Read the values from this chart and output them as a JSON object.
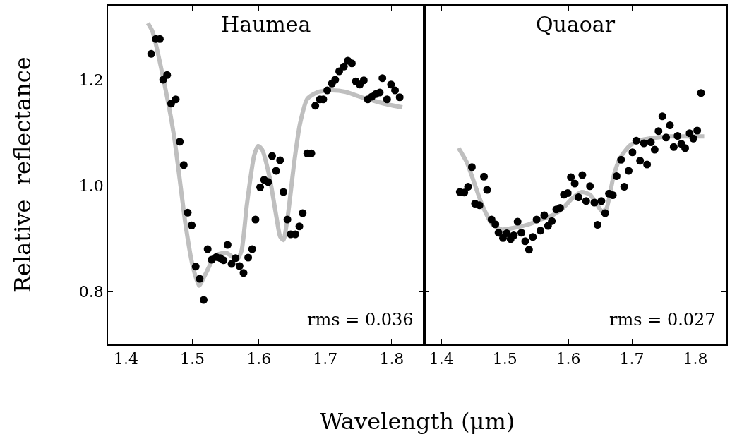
{
  "chart_data": [
    {
      "type": "scatter",
      "title": "Haumea",
      "xlabel": "Wavelength (μm)",
      "ylabel": "Relative  reflectance",
      "annotations": [
        "rms = 0.036"
      ],
      "xlim": [
        1.373,
        1.849
      ],
      "xticks": [
        1.4,
        1.5,
        1.6,
        1.7,
        1.8
      ],
      "ylim": [
        0.7,
        1.34
      ],
      "yticks": [
        {
          "value": 0.8,
          "label": "0.8"
        },
        {
          "value": 1.0,
          "label": "1.0"
        },
        {
          "value": 1.2,
          "label": "1.2"
        }
      ],
      "series": [
        {
          "type": "line",
          "marker": "none",
          "color": "#bfbfbf",
          "x": [
            1.433,
            1.44,
            1.456,
            1.472,
            1.49,
            1.5,
            1.51,
            1.519,
            1.535,
            1.551,
            1.567,
            1.574,
            1.582,
            1.593,
            1.599,
            1.605,
            1.616,
            1.627,
            1.632,
            1.637,
            1.643,
            1.654,
            1.662,
            1.673,
            1.689,
            1.71,
            1.731,
            1.752,
            1.774,
            1.795,
            1.816
          ],
          "values": [
            1.307,
            1.291,
            1.204,
            1.097,
            0.924,
            0.851,
            0.811,
            0.831,
            0.868,
            0.873,
            0.86,
            0.877,
            0.964,
            1.057,
            1.075,
            1.068,
            1.017,
            0.937,
            0.904,
            0.897,
            0.937,
            1.051,
            1.117,
            1.164,
            1.177,
            1.18,
            1.177,
            1.168,
            1.16,
            1.153,
            1.148
          ]
        },
        {
          "marker": "circle",
          "color": "#000000",
          "x": [
            1.438,
            1.445,
            1.451,
            1.456,
            1.462,
            1.468,
            1.475,
            1.481,
            1.487,
            1.493,
            1.499,
            1.505,
            1.511,
            1.517,
            1.523,
            1.529,
            1.536,
            1.542,
            1.547,
            1.553,
            1.559,
            1.565,
            1.571,
            1.577,
            1.584,
            1.59,
            1.595,
            1.602,
            1.608,
            1.614,
            1.62,
            1.626,
            1.632,
            1.637,
            1.643,
            1.648,
            1.655,
            1.661,
            1.666,
            1.673,
            1.679,
            1.685,
            1.692,
            1.697,
            1.703,
            1.71,
            1.715,
            1.721,
            1.728,
            1.734,
            1.74,
            1.746,
            1.752,
            1.758,
            1.764,
            1.77,
            1.776,
            1.782,
            1.786,
            1.793,
            1.799,
            1.805,
            1.812
          ],
          "values": [
            1.249,
            1.277,
            1.277,
            1.2,
            1.209,
            1.155,
            1.163,
            1.083,
            1.039,
            0.949,
            0.925,
            0.847,
            0.824,
            0.784,
            0.88,
            0.86,
            0.865,
            0.863,
            0.859,
            0.888,
            0.852,
            0.863,
            0.848,
            0.835,
            0.864,
            0.88,
            0.936,
            0.997,
            1.011,
            1.007,
            1.056,
            1.028,
            1.048,
            0.988,
            0.936,
            0.908,
            0.908,
            0.923,
            0.948,
            1.061,
            1.061,
            1.151,
            1.163,
            1.163,
            1.18,
            1.193,
            1.2,
            1.216,
            1.225,
            1.236,
            1.231,
            1.197,
            1.191,
            1.199,
            1.163,
            1.168,
            1.173,
            1.176,
            1.203,
            1.163,
            1.191,
            1.18,
            1.167
          ]
        }
      ]
    },
    {
      "type": "scatter",
      "title": "Quaoar",
      "annotations": [
        "rms = 0.027"
      ],
      "xlim": [
        1.373,
        1.849
      ],
      "xticks": [
        1.4,
        1.5,
        1.6,
        1.7,
        1.8
      ],
      "ylim": [
        0.7,
        1.34
      ],
      "yticks": [
        {
          "value": 0.8,
          "label": null
        },
        {
          "value": 1.0,
          "label": null
        },
        {
          "value": 1.2,
          "label": null
        }
      ],
      "tick_labels": "x",
      "series": [
        {
          "type": "line",
          "marker": "none",
          "color": "#bfbfbf",
          "x": [
            1.427,
            1.44,
            1.464,
            1.48,
            1.495,
            1.517,
            1.538,
            1.559,
            1.575,
            1.591,
            1.607,
            1.621,
            1.634,
            1.644,
            1.653,
            1.66,
            1.671,
            1.681,
            1.697,
            1.718,
            1.74,
            1.761,
            1.782,
            1.814
          ],
          "values": [
            1.071,
            1.044,
            0.964,
            0.927,
            0.917,
            0.921,
            0.927,
            0.937,
            0.944,
            0.957,
            0.977,
            0.988,
            0.983,
            0.967,
            0.951,
            0.957,
            1.017,
            1.051,
            1.076,
            1.087,
            1.091,
            1.093,
            1.093,
            1.093
          ]
        },
        {
          "marker": "circle",
          "color": "#000000",
          "x": [
            1.429,
            1.436,
            1.442,
            1.448,
            1.453,
            1.46,
            1.467,
            1.472,
            1.479,
            1.485,
            1.49,
            1.497,
            1.503,
            1.509,
            1.514,
            1.52,
            1.526,
            1.532,
            1.538,
            1.544,
            1.55,
            1.556,
            1.562,
            1.568,
            1.574,
            1.581,
            1.587,
            1.593,
            1.599,
            1.604,
            1.61,
            1.616,
            1.622,
            1.628,
            1.634,
            1.641,
            1.646,
            1.652,
            1.658,
            1.664,
            1.67,
            1.676,
            1.683,
            1.688,
            1.695,
            1.701,
            1.707,
            1.713,
            1.719,
            1.724,
            1.73,
            1.736,
            1.742,
            1.748,
            1.754,
            1.76,
            1.766,
            1.772,
            1.778,
            1.784,
            1.791,
            1.797,
            1.803,
            1.809
          ],
          "values": [
            0.988,
            0.987,
            0.998,
            1.035,
            0.966,
            0.963,
            1.017,
            0.992,
            0.936,
            0.927,
            0.911,
            0.901,
            0.91,
            0.899,
            0.906,
            0.932,
            0.911,
            0.895,
            0.879,
            0.903,
            0.936,
            0.915,
            0.944,
            0.924,
            0.933,
            0.955,
            0.958,
            0.983,
            0.986,
            1.016,
            1.004,
            0.978,
            1.02,
            0.971,
            0.999,
            0.968,
            0.926,
            0.971,
            0.948,
            0.985,
            0.982,
            1.018,
            1.049,
            0.998,
            1.028,
            1.063,
            1.085,
            1.047,
            1.08,
            1.04,
            1.082,
            1.068,
            1.103,
            1.131,
            1.091,
            1.114,
            1.073,
            1.094,
            1.079,
            1.071,
            1.099,
            1.089,
            1.104,
            1.175
          ]
        }
      ]
    }
  ]
}
